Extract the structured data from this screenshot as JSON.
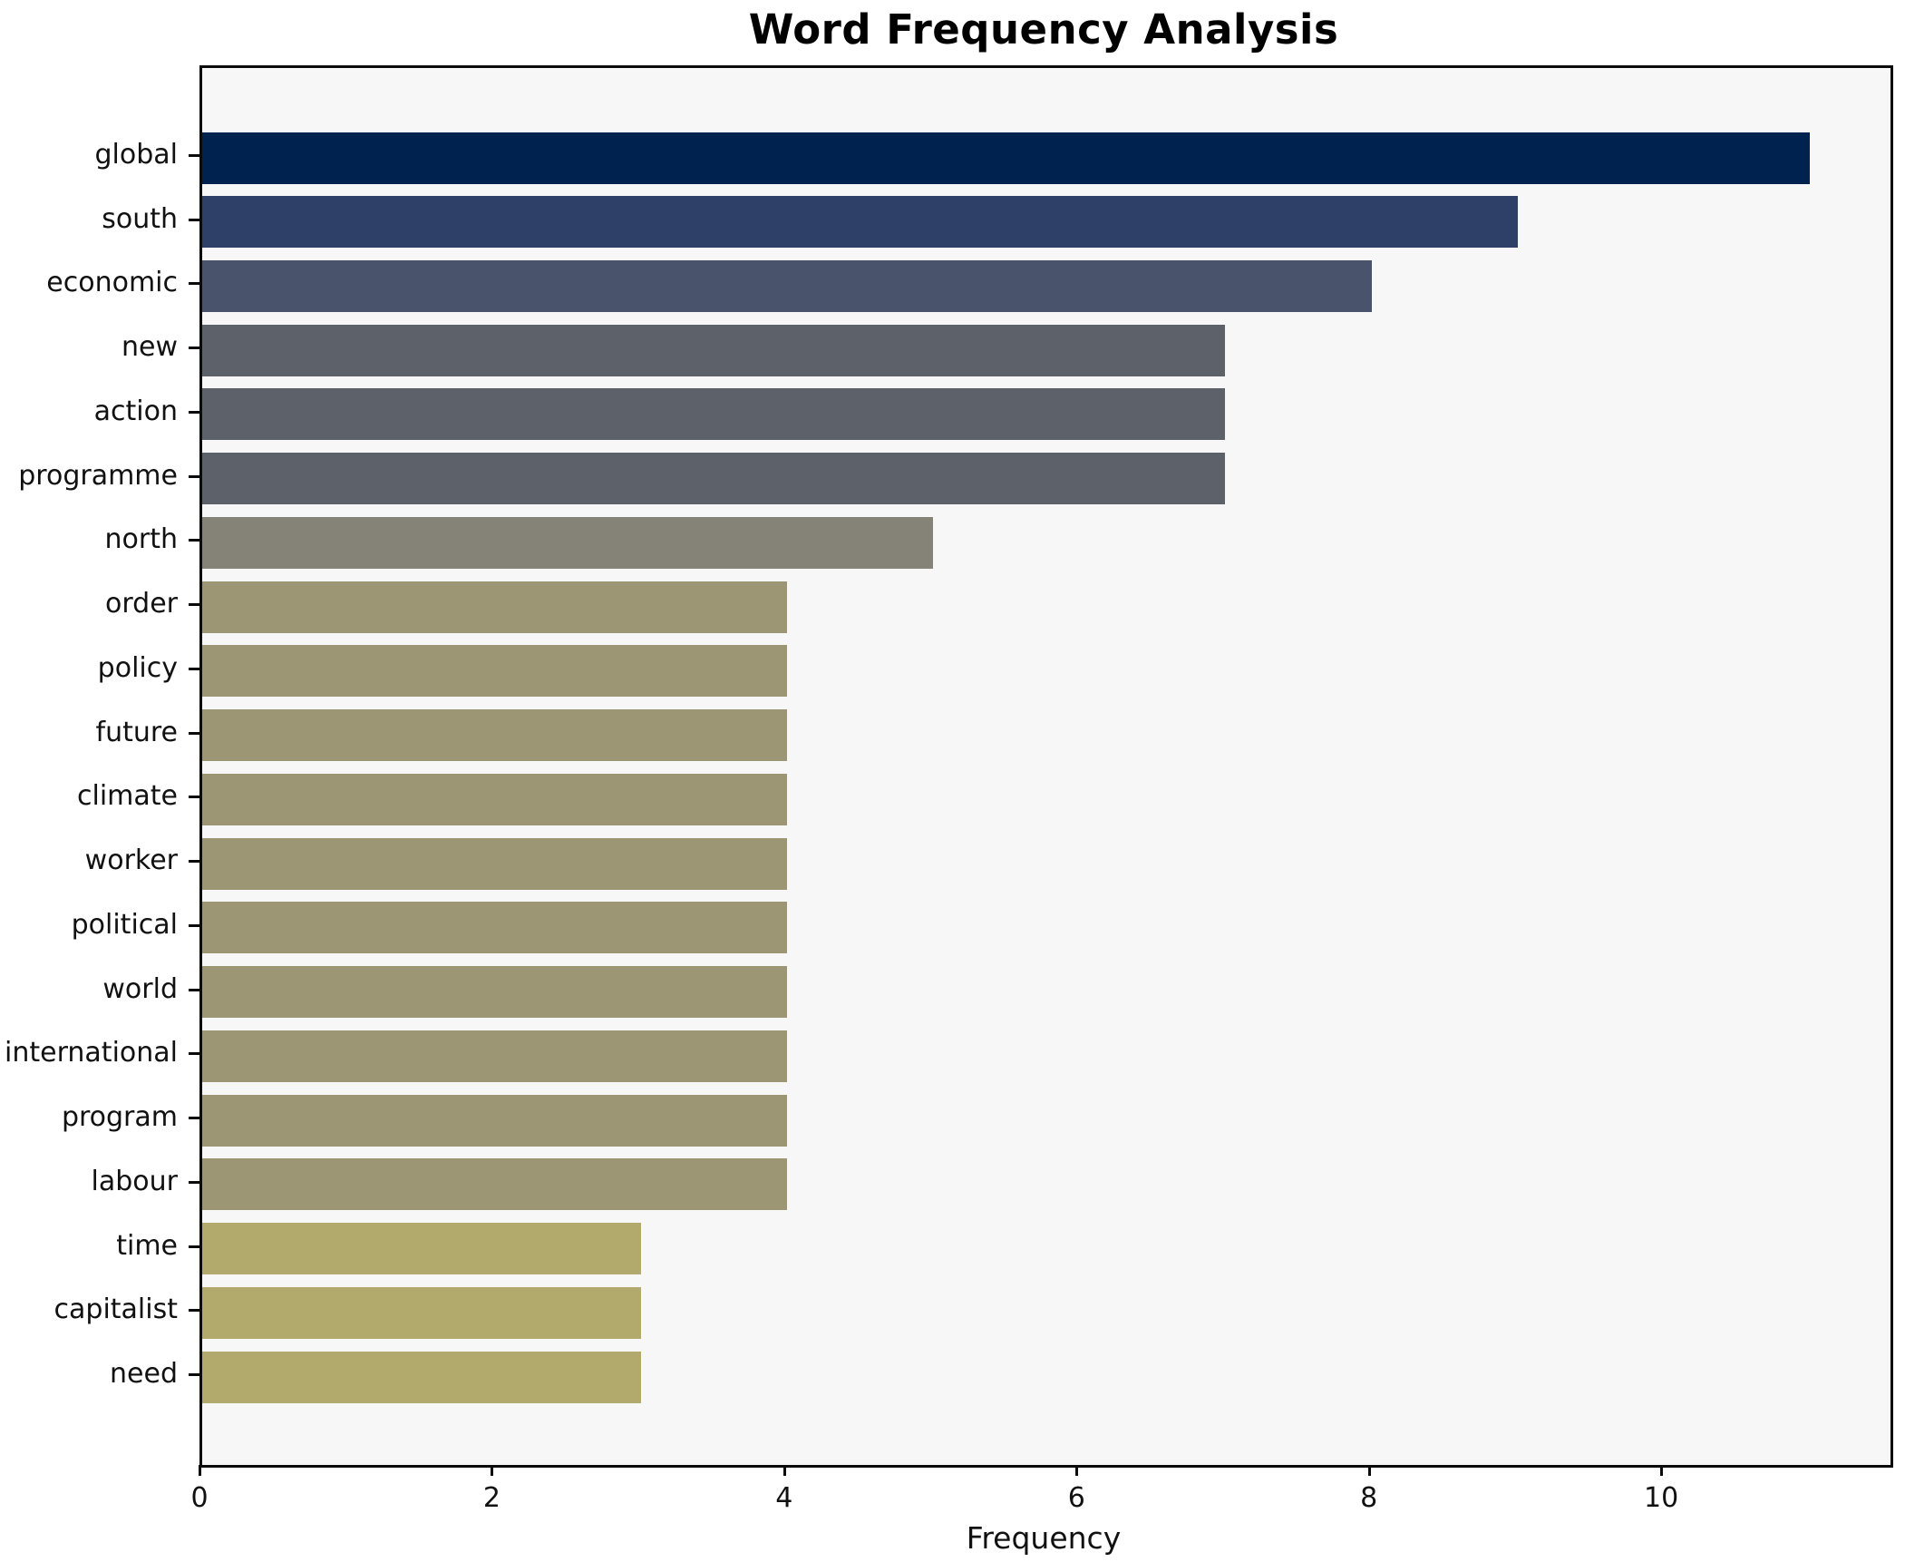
{
  "figure": {
    "background": "#ffffff",
    "plot_background": "#f7f7f7",
    "spine_color": "#0b0b0b"
  },
  "chart_data": {
    "type": "bar",
    "orientation": "horizontal",
    "title": "Word Frequency Analysis",
    "xlabel": "Frequency",
    "ylabel": "",
    "categories": [
      "global",
      "south",
      "economic",
      "new",
      "action",
      "programme",
      "north",
      "order",
      "policy",
      "future",
      "climate",
      "worker",
      "political",
      "world",
      "international",
      "program",
      "labour",
      "time",
      "capitalist",
      "need"
    ],
    "values": [
      11,
      9,
      8,
      7,
      7,
      7,
      5,
      4,
      4,
      4,
      4,
      4,
      4,
      4,
      4,
      4,
      4,
      3,
      3,
      3
    ],
    "bar_colors": [
      "#00224e",
      "#2e4068",
      "#49536c",
      "#5d6169",
      "#5d6169",
      "#5d6169",
      "#858378",
      "#9c9674",
      "#9c9674",
      "#9c9674",
      "#9c9674",
      "#9c9674",
      "#9c9674",
      "#9c9674",
      "#9c9674",
      "#9c9674",
      "#9c9674",
      "#b2a96c",
      "#b2a96c",
      "#b2a96c"
    ],
    "xlim": [
      0,
      11.55
    ],
    "x_ticks": [
      0,
      2,
      4,
      6,
      8,
      10
    ],
    "grid": false,
    "legend": null
  }
}
